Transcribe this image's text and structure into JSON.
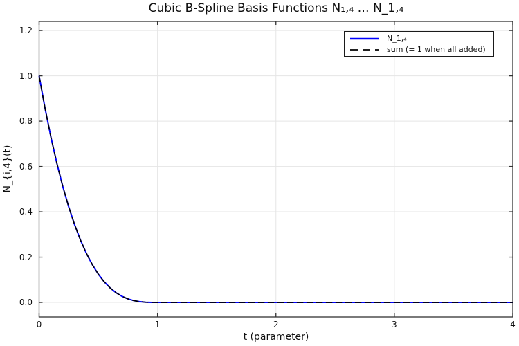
{
  "figure": {
    "title": "Cubic B-Spline Basis Functions N₁,₄ … N_1,₄",
    "xlabel": "t (parameter)",
    "ylabel": "N_{i,4}(t)"
  },
  "legend": {
    "position": "top-right",
    "entries": [
      {
        "label": "N_1,₄",
        "color": "#0000ff",
        "style": "solid"
      },
      {
        "label": "sum (= 1 when all added)",
        "color": "#000000",
        "style": "dashed"
      }
    ]
  },
  "colors": {
    "background": "#ffffff",
    "frame": "#333333",
    "grid": "#e5e5e5",
    "tick": "#333333",
    "text": "#0f0f0f"
  },
  "chart_data": {
    "type": "line",
    "title": "Cubic B-Spline Basis Functions N₁,₄ … N_1,₄",
    "xlabel": "t (parameter)",
    "ylabel": "N_{i,4}(t)",
    "xlim": [
      0,
      4
    ],
    "ylim": [
      -0.064,
      1.24
    ],
    "xticks": [
      0,
      1,
      2,
      3,
      4
    ],
    "xtick_labels": [
      "0",
      "1",
      "2",
      "3",
      "4"
    ],
    "yticks": [
      0.0,
      0.2,
      0.4,
      0.6,
      0.8,
      1.0,
      1.2
    ],
    "ytick_labels": [
      "0.0",
      "0.2",
      "0.4",
      "0.6",
      "0.8",
      "1.0",
      "1.2"
    ],
    "grid": true,
    "legend_position": "top-right",
    "x": [
      0,
      0.05,
      0.1,
      0.15,
      0.2,
      0.25,
      0.3,
      0.35,
      0.4,
      0.45,
      0.5,
      0.55,
      0.6,
      0.65,
      0.7,
      0.75,
      0.8,
      0.85,
      0.9,
      0.95,
      1,
      1.5,
      2,
      2.5,
      3,
      3.5,
      4
    ],
    "series": [
      {
        "name": "N_1,₄",
        "color": "#0000ff",
        "style": "solid",
        "line_width": 2,
        "values": [
          1,
          0.8574,
          0.729,
          0.6141,
          0.512,
          0.4219,
          0.343,
          0.2746,
          0.216,
          0.1664,
          0.125,
          0.0911,
          0.064,
          0.0429,
          0.027,
          0.0156,
          0.008,
          0.0034,
          0.001,
          0.0001,
          0,
          0,
          0,
          0,
          0,
          0,
          0
        ]
      },
      {
        "name": "sum (= 1 when all added)",
        "color": "#000000",
        "style": "dashed",
        "line_width": 1.6,
        "values": [
          1,
          0.8574,
          0.729,
          0.6141,
          0.512,
          0.4219,
          0.343,
          0.2746,
          0.216,
          0.1664,
          0.125,
          0.0911,
          0.064,
          0.0429,
          0.027,
          0.0156,
          0.008,
          0.0034,
          0.001,
          0.0001,
          0,
          0,
          0,
          0,
          0,
          0,
          0
        ]
      }
    ]
  }
}
